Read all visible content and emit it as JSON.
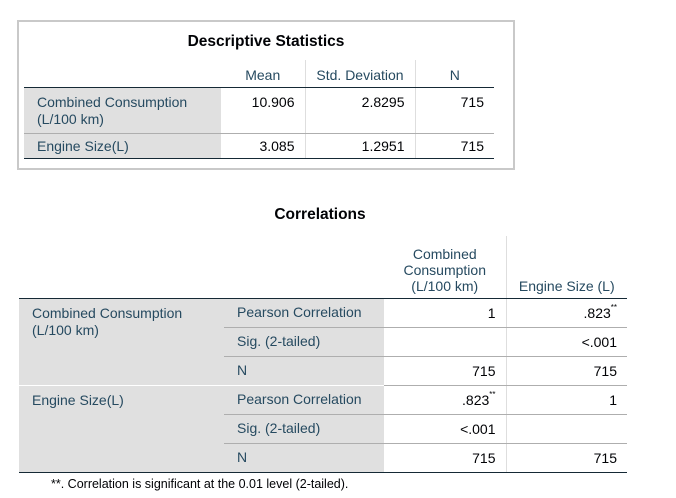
{
  "descriptive": {
    "title": "Descriptive Statistics",
    "columns": [
      "Mean",
      "Std. Deviation",
      "N"
    ],
    "rows": [
      {
        "label": "Combined Consumption (L/100 km)",
        "mean": "10.906",
        "std": "2.8295",
        "n": "715"
      },
      {
        "label": "Engine Size(L)",
        "mean": "3.085",
        "std": "1.2951",
        "n": "715"
      }
    ]
  },
  "correlations": {
    "title": "Correlations",
    "columns": [
      "Combined Consumption (L/100 km)",
      "Engine Size (L)"
    ],
    "row_groups": [
      {
        "label": "Combined Consumption (L/100 km)",
        "stats": [
          {
            "stat": "Pearson Correlation",
            "v1": "1",
            "v1_mark": "",
            "v2": ".823",
            "v2_mark": "**"
          },
          {
            "stat": "Sig. (2-tailed)",
            "v1": "",
            "v1_mark": "",
            "v2": "<.001",
            "v2_mark": ""
          },
          {
            "stat": "N",
            "v1": "715",
            "v1_mark": "",
            "v2": "715",
            "v2_mark": ""
          }
        ]
      },
      {
        "label": "Engine Size(L)",
        "stats": [
          {
            "stat": "Pearson Correlation",
            "v1": ".823",
            "v1_mark": "**",
            "v2": "1",
            "v2_mark": ""
          },
          {
            "stat": "Sig. (2-tailed)",
            "v1": "<.001",
            "v1_mark": "",
            "v2": "",
            "v2_mark": ""
          },
          {
            "stat": "N",
            "v1": "715",
            "v1_mark": "",
            "v2": "715",
            "v2_mark": ""
          }
        ]
      }
    ],
    "footnote": "**. Correlation is significant at the 0.01 level (2-tailed)."
  }
}
